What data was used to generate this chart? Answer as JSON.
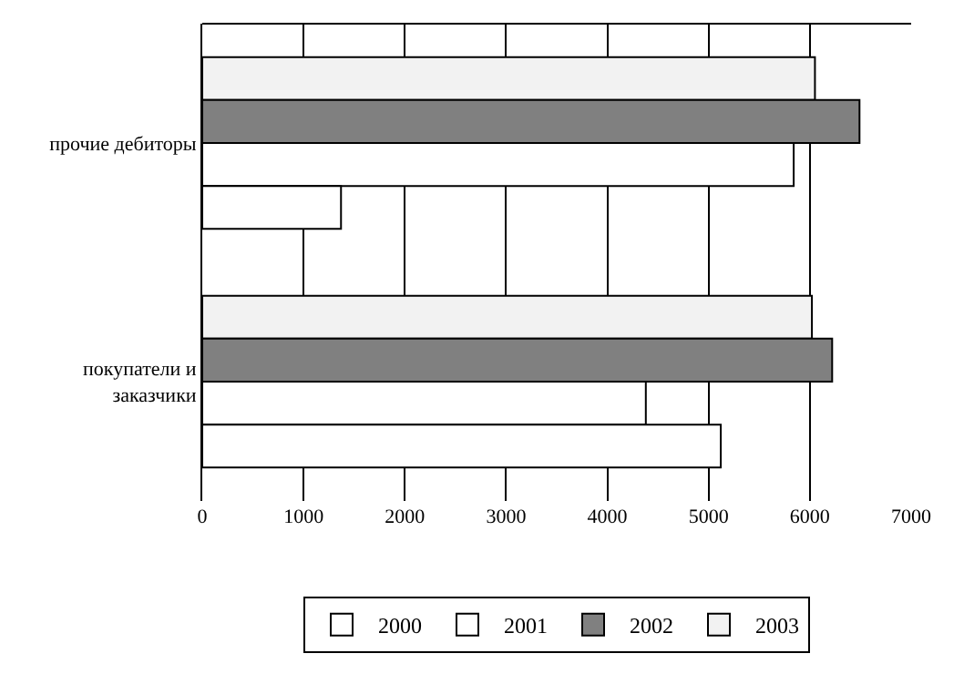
{
  "chart_data": {
    "type": "bar",
    "orientation": "horizontal",
    "categories": [
      "прочие дебиторы",
      "покупатели и заказчики"
    ],
    "series": [
      {
        "name": "2000",
        "color": "#ffffff",
        "values": [
          1370,
          5120
        ]
      },
      {
        "name": "2001",
        "color": "#ffffff",
        "values": [
          5840,
          4380
        ]
      },
      {
        "name": "2002",
        "color": "#808080",
        "values": [
          6490,
          6220
        ]
      },
      {
        "name": "2003",
        "color": "#f2f2f2",
        "values": [
          6050,
          6020
        ]
      }
    ],
    "xlim": [
      0,
      7000
    ],
    "xticks": [
      0,
      1000,
      2000,
      3000,
      4000,
      5000,
      6000,
      7000
    ],
    "grid": "x",
    "legend": "bottom"
  }
}
